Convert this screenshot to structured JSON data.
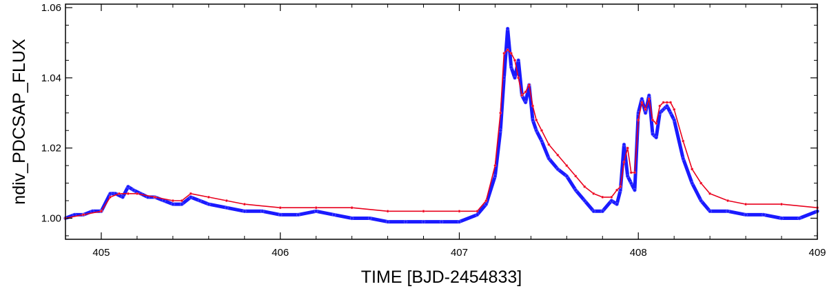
{
  "chart_data": {
    "type": "line",
    "title": "",
    "xlabel": "TIME [BJD-2454833]",
    "ylabel": "ndiv_PDCSAP_FLUX",
    "xlim": [
      404.8,
      409.0
    ],
    "ylim": [
      0.994,
      1.061
    ],
    "x_ticks": [
      "405",
      "406",
      "407",
      "408",
      "409"
    ],
    "y_ticks": [
      "1.00",
      "1.02",
      "1.04",
      "1.06"
    ],
    "grid": false,
    "legend": "none",
    "series": [
      {
        "color": "#1a1aff",
        "style": "thick line with points",
        "x": [
          404.8,
          404.85,
          404.9,
          404.95,
          405.0,
          405.05,
          405.08,
          405.12,
          405.15,
          405.18,
          405.22,
          405.26,
          405.3,
          405.35,
          405.4,
          405.45,
          405.5,
          405.55,
          405.6,
          405.7,
          405.8,
          405.9,
          406.0,
          406.1,
          406.2,
          406.3,
          406.4,
          406.5,
          406.6,
          406.7,
          406.8,
          406.9,
          407.0,
          407.1,
          407.15,
          407.2,
          407.23,
          407.25,
          407.27,
          407.29,
          407.31,
          407.33,
          407.35,
          407.37,
          407.39,
          407.41,
          407.43,
          407.46,
          407.5,
          407.55,
          407.6,
          407.65,
          407.7,
          407.75,
          407.8,
          407.85,
          407.88,
          407.9,
          407.92,
          407.94,
          407.96,
          407.98,
          408.0,
          408.02,
          408.04,
          408.06,
          408.08,
          408.1,
          408.12,
          408.14,
          408.16,
          408.18,
          408.2,
          408.25,
          408.3,
          408.35,
          408.4,
          408.5,
          408.6,
          408.7,
          408.8,
          408.9,
          409.0
        ],
        "values": [
          1.0,
          1.001,
          1.001,
          1.002,
          1.002,
          1.007,
          1.007,
          1.006,
          1.009,
          1.008,
          1.007,
          1.006,
          1.006,
          1.005,
          1.004,
          1.004,
          1.006,
          1.005,
          1.004,
          1.003,
          1.002,
          1.002,
          1.001,
          1.001,
          1.002,
          1.001,
          1.0,
          1.0,
          0.999,
          0.999,
          0.999,
          0.999,
          0.999,
          1.001,
          1.004,
          1.012,
          1.025,
          1.04,
          1.054,
          1.043,
          1.04,
          1.045,
          1.035,
          1.033,
          1.038,
          1.028,
          1.025,
          1.022,
          1.017,
          1.014,
          1.012,
          1.008,
          1.005,
          1.002,
          1.002,
          1.005,
          1.004,
          1.008,
          1.021,
          1.012,
          1.01,
          1.008,
          1.03,
          1.034,
          1.03,
          1.035,
          1.024,
          1.023,
          1.03,
          1.031,
          1.032,
          1.03,
          1.028,
          1.017,
          1.01,
          1.005,
          1.002,
          1.002,
          1.001,
          1.001,
          1.0,
          1.0,
          1.002
        ]
      },
      {
        "color": "#e8001c",
        "style": "thin line with points",
        "x": [
          404.8,
          404.9,
          405.0,
          405.05,
          405.1,
          405.15,
          405.2,
          405.3,
          405.4,
          405.45,
          405.5,
          405.6,
          405.7,
          405.8,
          406.0,
          406.2,
          406.4,
          406.6,
          406.8,
          407.0,
          407.1,
          407.15,
          407.2,
          407.23,
          407.25,
          407.27,
          407.29,
          407.31,
          407.33,
          407.35,
          407.37,
          407.39,
          407.41,
          407.43,
          407.46,
          407.5,
          407.55,
          407.6,
          407.65,
          407.7,
          407.75,
          407.8,
          407.85,
          407.88,
          407.9,
          407.92,
          407.94,
          407.96,
          407.98,
          408.0,
          408.02,
          408.04,
          408.06,
          408.08,
          408.1,
          408.12,
          408.14,
          408.16,
          408.18,
          408.2,
          408.25,
          408.3,
          408.35,
          408.4,
          408.5,
          408.6,
          408.8,
          409.0
        ],
        "values": [
          1.0,
          1.001,
          1.002,
          1.006,
          1.007,
          1.007,
          1.007,
          1.006,
          1.005,
          1.005,
          1.007,
          1.006,
          1.005,
          1.004,
          1.003,
          1.003,
          1.003,
          1.002,
          1.002,
          1.002,
          1.002,
          1.005,
          1.015,
          1.03,
          1.047,
          1.048,
          1.047,
          1.045,
          1.04,
          1.035,
          1.036,
          1.038,
          1.032,
          1.028,
          1.025,
          1.021,
          1.018,
          1.015,
          1.012,
          1.009,
          1.007,
          1.006,
          1.006,
          1.008,
          1.009,
          1.016,
          1.02,
          1.013,
          1.013,
          1.028,
          1.033,
          1.031,
          1.034,
          1.028,
          1.027,
          1.032,
          1.033,
          1.033,
          1.033,
          1.031,
          1.022,
          1.014,
          1.01,
          1.007,
          1.005,
          1.004,
          1.004,
          1.003
        ]
      }
    ]
  }
}
